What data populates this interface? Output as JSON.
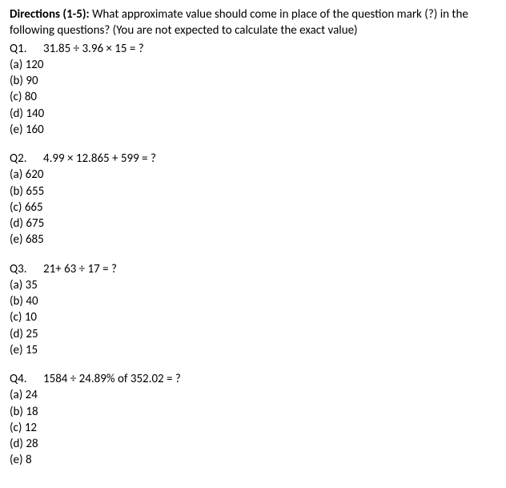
{
  "directions": {
    "label": "Directions (1-5):",
    "text": " What approximate value should come in place of the question mark (?) in the following questions? (You are not expected to calculate the exact value)"
  },
  "questions": [
    {
      "num": "Q1.",
      "prompt": "31.85 ÷ 3.96 × 15 = ?",
      "options": [
        "(a) 120",
        "(b) 90",
        "(c) 80",
        "(d) 140",
        "(e) 160"
      ]
    },
    {
      "num": "Q2.",
      "prompt": "4.99 × 12.865 + 599 = ?",
      "options": [
        "(a) 620",
        "(b) 655",
        "(c) 665",
        "(d) 675",
        "(e) 685"
      ]
    },
    {
      "num": "Q3.",
      "prompt": "21+ 63 ÷ 17 = ?",
      "options": [
        "(a) 35",
        "(b) 40",
        "(c) 10",
        "(d) 25",
        "(e) 15"
      ]
    },
    {
      "num": "Q4.",
      "prompt": "1584 ÷ 24.89% of 352.02 = ?",
      "options": [
        "(a) 24",
        "(b) 18",
        "(c) 12",
        "(d) 28",
        "(e) 8"
      ]
    }
  ]
}
